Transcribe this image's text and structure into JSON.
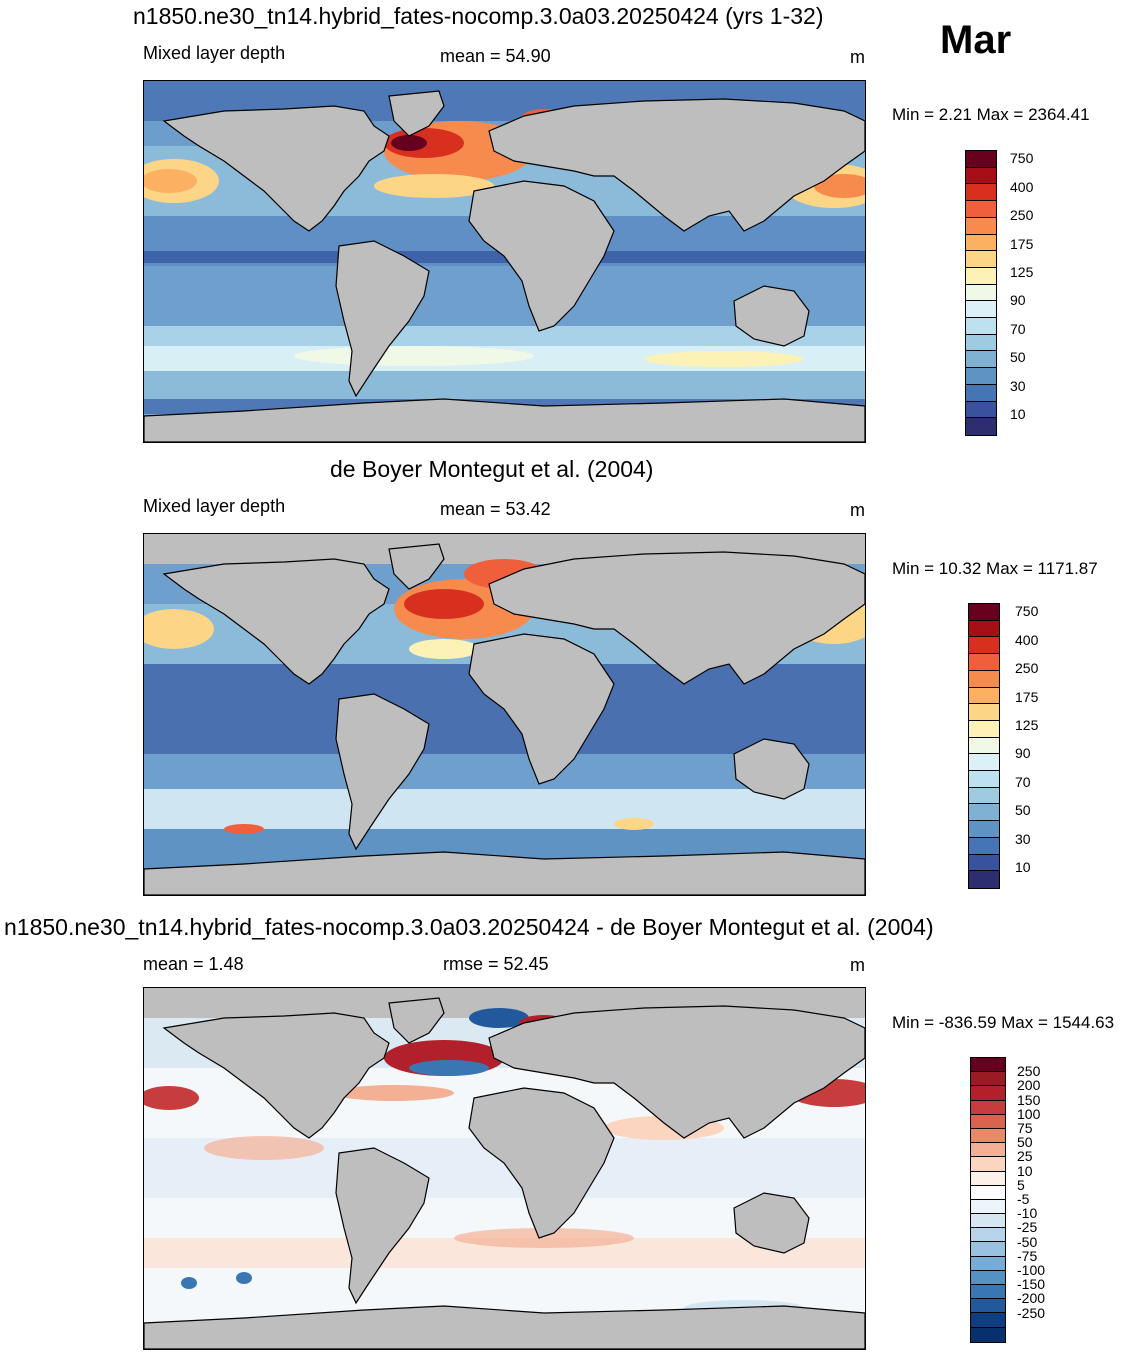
{
  "month": "Mar",
  "panels": [
    {
      "title": "n1850.ne30_tn14.hybrid_fates-nocomp.3.0a03.20250424 (yrs 1-32)",
      "left_label": "Mixed layer depth",
      "center_label": "mean =  54.90",
      "units": "m",
      "minmax": "Min =   2.21 Max = 2364.41",
      "colorbar": {
        "colors": [
          "#67001f",
          "#a50f15",
          "#d7301f",
          "#ef5f3c",
          "#f78b4e",
          "#fbb062",
          "#fdd587",
          "#fdf2b6",
          "#f0f9e8",
          "#dcf0f8",
          "#bde1ee",
          "#9fcbe1",
          "#7fb1d3",
          "#5f93c4",
          "#4575b4",
          "#3a519e",
          "#2d2e70"
        ],
        "labels": [
          "750",
          "400",
          "250",
          "175",
          "125",
          "90",
          "70",
          "50",
          "30",
          "10"
        ]
      }
    },
    {
      "title": "de Boyer Montegut et al. (2004)",
      "left_label": "Mixed layer depth",
      "center_label": "mean =  53.42",
      "units": "m",
      "minmax": "Min =  10.32 Max = 1171.87",
      "colorbar": {
        "colors": [
          "#67001f",
          "#a50f15",
          "#d7301f",
          "#ef5f3c",
          "#f78b4e",
          "#fbb062",
          "#fdd587",
          "#fdf2b6",
          "#f0f9e8",
          "#dcf0f8",
          "#bde1ee",
          "#9fcbe1",
          "#7fb1d3",
          "#5f93c4",
          "#4575b4",
          "#3a519e",
          "#2d2e70"
        ],
        "labels": [
          "750",
          "400",
          "250",
          "175",
          "125",
          "90",
          "70",
          "50",
          "30",
          "10"
        ]
      }
    },
    {
      "title": "n1850.ne30_tn14.hybrid_fates-nocomp.3.0a03.20250424 - de Boyer Montegut et al. (2004)",
      "left_label": "mean =   1.48",
      "center_label": "rmse =  52.45",
      "units": "m",
      "minmax": "Min = -836.59 Max = 1544.63",
      "colorbar": {
        "colors": [
          "#67001f",
          "#9b1b25",
          "#b2202c",
          "#c73c3c",
          "#d86450",
          "#e88a6a",
          "#f4b094",
          "#fbd5c0",
          "#fdf0e8",
          "#ffffff",
          "#eef5fa",
          "#d4e6f2",
          "#b7d4ea",
          "#99c2e0",
          "#78acd4",
          "#5592c4",
          "#3a77b2",
          "#22599c",
          "#0f3f80",
          "#08306b"
        ],
        "labels": [
          "250",
          "200",
          "150",
          "100",
          "75",
          "50",
          "25",
          "10",
          "5",
          "-5",
          "-10",
          "-25",
          "-50",
          "-75",
          "-100",
          "-150",
          "-200",
          "-250"
        ]
      }
    }
  ]
}
